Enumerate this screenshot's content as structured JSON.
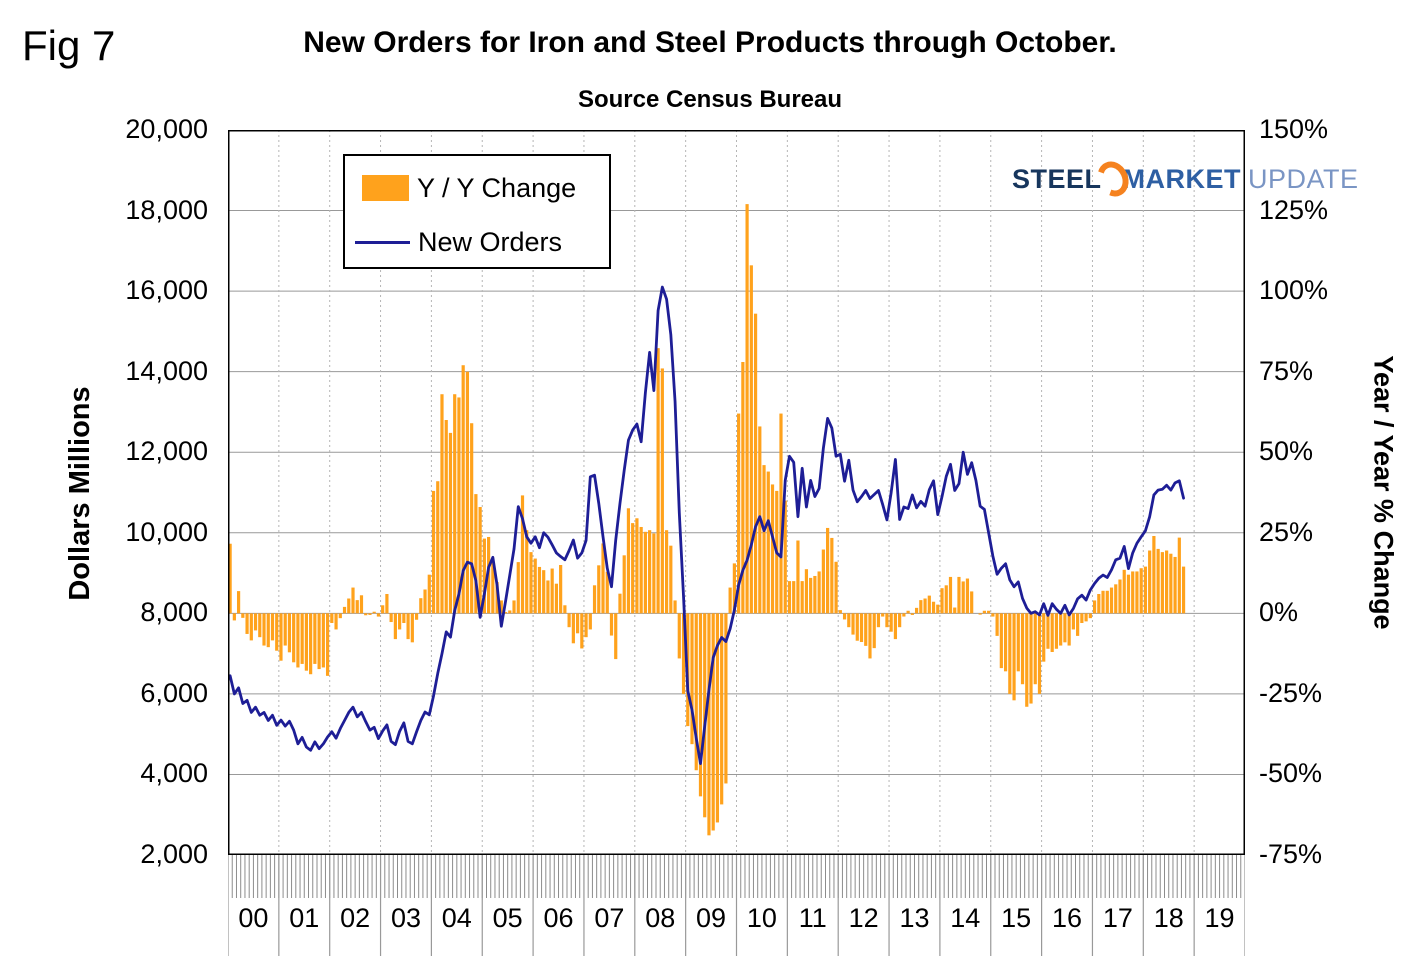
{
  "fig_label": "Fig 7",
  "title": "New Orders for Iron and Steel Products through October.",
  "subtitle": "Source Census Bureau",
  "legend": {
    "bar_label": "Y / Y Change",
    "line_label": "New Orders"
  },
  "logo": {
    "word1": "STEEL",
    "word2": "MARKET",
    "word3": "UPDATE"
  },
  "left_axis": {
    "title": "Dollars Millions",
    "min": 2000,
    "max": 20000,
    "step": 2000,
    "ticks": [
      "20,000",
      "18,000",
      "16,000",
      "14,000",
      "12,000",
      "10,000",
      "8,000",
      "6,000",
      "4,000",
      "2,000"
    ]
  },
  "right_axis": {
    "title": "Year / Year % Change",
    "min": -75,
    "max": 150,
    "step": 25,
    "ticks": [
      "150%",
      "125%",
      "100%",
      "75%",
      "50%",
      "25%",
      "0%",
      "-25%",
      "-50%",
      "-75%"
    ]
  },
  "x_axis": {
    "years": [
      "00",
      "01",
      "02",
      "03",
      "04",
      "05",
      "06",
      "07",
      "08",
      "09",
      "10",
      "11",
      "12",
      "13",
      "14",
      "15",
      "16",
      "17",
      "18",
      "19"
    ]
  },
  "colors": {
    "bar": "#FFA21C",
    "line": "#1E1E96",
    "grid": "#999999",
    "year_grid": "#b5b5b5",
    "comb": "#8c8c8c",
    "frame": "#000000",
    "logo_steel": "#17365D",
    "logo_market": "#2E5FA3",
    "logo_update": "#7A95C4",
    "logo_crescent": "#F5821F"
  },
  "chart_data": {
    "type": "combo",
    "x_monthly_start": "2000-01",
    "x_monthly_end": "2018-10",
    "x_slots_months": 240,
    "left_axis_range": [
      2000,
      20000
    ],
    "right_axis_range": [
      -75,
      150
    ],
    "grid": true,
    "legend_position": "top-left-inside",
    "series": [
      {
        "name": "Y / Y Change",
        "type": "bar",
        "axis": "right",
        "unit": "%",
        "values": [
          21.6,
          -2.2,
          6.9,
          -1.4,
          -6.4,
          -8.4,
          -5.3,
          -7.4,
          -10,
          -10.5,
          -8.4,
          -11.6,
          -14.7,
          -10,
          -12.1,
          -15.2,
          -16.8,
          -15.7,
          -17.8,
          -18.9,
          -15.7,
          -17.3,
          -16.8,
          -19.4,
          -3,
          -5,
          -1.5,
          2,
          4.6,
          8,
          4.1,
          5.6,
          -0.6,
          -0.5,
          0.5,
          -1,
          2.5,
          6,
          -2.7,
          -8,
          -5,
          -3,
          -8,
          -9,
          -2,
          4.7,
          7.4,
          12,
          38,
          41,
          68,
          60,
          56,
          68,
          67,
          77,
          75,
          59,
          37,
          33,
          23.2,
          23.7,
          16.5,
          9.7,
          4,
          0.4,
          0.9,
          4,
          15.9,
          36.6,
          25.8,
          19,
          17,
          14.4,
          13.4,
          10.2,
          13.9,
          9.2,
          15,
          2.5,
          -4.3,
          -9.3,
          -6.2,
          -10.9,
          -7.4,
          -5,
          8.7,
          14.9,
          21.7,
          12.9,
          -6.9,
          -14.2,
          6.1,
          18,
          32.6,
          28,
          29.5,
          26.8,
          25.3,
          25.8,
          24.8,
          82.3,
          76,
          25.8,
          21,
          4,
          -14,
          -25,
          -35,
          -40.6,
          -48.7,
          -56.8,
          -63.3,
          -68.9,
          -67.4,
          -64.9,
          -59.3,
          -52.8,
          8,
          15.5,
          62,
          78,
          127,
          108,
          93,
          58,
          46,
          44,
          40,
          38,
          62,
          35,
          10,
          10,
          22.6,
          10,
          13.7,
          11,
          11.6,
          13,
          19.8,
          26.5,
          23.4,
          16,
          1,
          -1.9,
          -4.3,
          -6.6,
          -8.5,
          -8.9,
          -10.1,
          -14,
          -10.8,
          -4.3,
          -1,
          -4.3,
          -5.7,
          -8,
          -4.3,
          -1,
          0.8,
          -0.5,
          1.7,
          4.1,
          4.6,
          5.5,
          3.6,
          2.7,
          7.8,
          8.7,
          11.3,
          1.8,
          11.3,
          9.9,
          10.8,
          6.8,
          0,
          -0.4,
          0.8,
          0.8,
          -1,
          -7,
          -17,
          -18,
          -25,
          -27,
          -18,
          -22,
          -29,
          -28,
          -22,
          -25,
          -15,
          -11,
          -12,
          -11,
          -10,
          -9,
          -10,
          -5,
          -7,
          -3,
          -2.5,
          -1.5,
          4,
          6,
          7,
          7,
          8,
          9,
          10.5,
          13.5,
          12,
          13,
          13,
          14,
          14.5,
          19.5,
          24,
          20,
          19,
          19.5,
          18.5,
          17.5,
          23.5,
          14.5
        ]
      },
      {
        "name": "New Orders",
        "type": "line",
        "axis": "left",
        "unit": "$M",
        "values": [
          6450,
          6000,
          6150,
          5760,
          5840,
          5540,
          5670,
          5470,
          5540,
          5340,
          5470,
          5220,
          5350,
          5200,
          5320,
          5100,
          4760,
          4920,
          4680,
          4600,
          4810,
          4640,
          4760,
          4930,
          5060,
          4900,
          5140,
          5340,
          5540,
          5670,
          5430,
          5540,
          5310,
          5100,
          5170,
          4890,
          5080,
          5230,
          4820,
          4740,
          5070,
          5280,
          4820,
          4760,
          5060,
          5340,
          5550,
          5480,
          5950,
          6510,
          7000,
          7540,
          7410,
          8070,
          8480,
          9060,
          9270,
          9230,
          8810,
          7900,
          8480,
          9140,
          9390,
          8700,
          7680,
          8300,
          8950,
          9600,
          10650,
          10350,
          9900,
          9740,
          9900,
          9630,
          10000,
          9890,
          9700,
          9500,
          9410,
          9330,
          9560,
          9820,
          9370,
          9500,
          9810,
          11390,
          11430,
          10730,
          9900,
          9120,
          8660,
          9820,
          10730,
          11550,
          12300,
          12550,
          12700,
          12260,
          13480,
          14480,
          13530,
          15520,
          16100,
          15800,
          14920,
          13260,
          10500,
          8420,
          6080,
          5600,
          4900,
          4270,
          5200,
          6100,
          6900,
          7200,
          7400,
          7300,
          7620,
          8080,
          8700,
          9070,
          9320,
          9700,
          10150,
          10400,
          10050,
          10300,
          9900,
          9500,
          9400,
          11300,
          11900,
          11750,
          10400,
          11600,
          10640,
          11300,
          10900,
          11100,
          12100,
          12840,
          12600,
          11900,
          11950,
          11280,
          11800,
          11060,
          10770,
          10900,
          11050,
          10850,
          10950,
          11050,
          10700,
          10320,
          11000,
          11820,
          10330,
          10640,
          10600,
          10940,
          10620,
          10780,
          10660,
          11070,
          11290,
          10450,
          10900,
          11400,
          11700,
          11050,
          11220,
          12000,
          11450,
          11740,
          11300,
          10660,
          10580,
          10000,
          9420,
          8970,
          9120,
          9230,
          8830,
          8660,
          8780,
          8370,
          8130,
          8000,
          8040,
          7960,
          8240,
          7950,
          8240,
          8100,
          8000,
          8200,
          7960,
          8120,
          8360,
          8450,
          8330,
          8580,
          8740,
          8870,
          8950,
          8890,
          9080,
          9330,
          9370,
          9660,
          9110,
          9500,
          9740,
          9900,
          10050,
          10400,
          10940,
          11060,
          11080,
          11180,
          11060,
          11240,
          11290,
          10860
        ]
      }
    ]
  }
}
